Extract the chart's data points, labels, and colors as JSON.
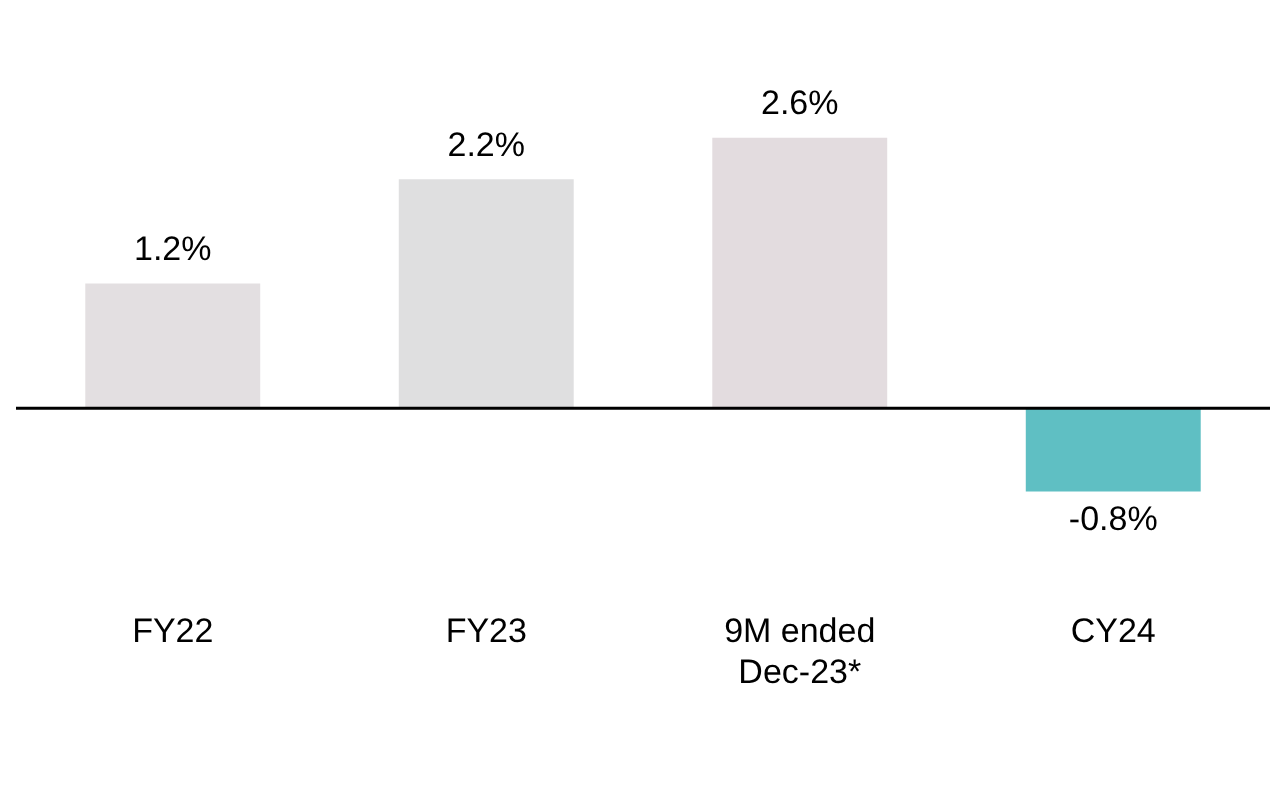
{
  "chart_data": {
    "type": "bar",
    "categories": [
      "FY22",
      "FY23",
      "9M ended Dec-23*",
      "CY24"
    ],
    "values": [
      1.2,
      2.2,
      2.6,
      -0.8
    ],
    "value_labels": [
      "1.2%",
      "2.2%",
      "2.6%",
      "-0.8%"
    ],
    "colors": [
      "#e3dfe1",
      "#dfdfe0",
      "#e3dcdf",
      "#5fbfc3"
    ],
    "grid": false,
    "legend": false
  }
}
